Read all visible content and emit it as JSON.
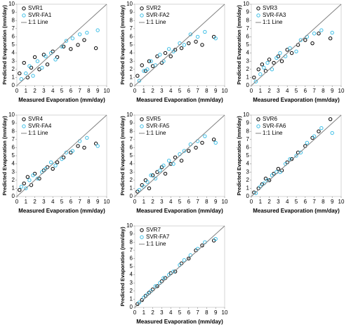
{
  "chart_data": [
    {
      "type": "scatter",
      "xlabel": "Measured Evaporation (mm/day)",
      "ylabel": "Predicted Evaporation (mm/day)",
      "xlim": [
        0,
        10
      ],
      "ylim": [
        0,
        10
      ],
      "xticks": [
        0,
        1,
        2,
        3,
        4,
        5,
        6,
        7,
        8,
        9,
        10
      ],
      "yticks": [
        0,
        1,
        2,
        3,
        4,
        5,
        6,
        7,
        8,
        9,
        10
      ],
      "series": [
        {
          "name": "SVR1",
          "color": "#000000",
          "x": [
            0.3,
            0.8,
            1.2,
            1.6,
            2.0,
            2.5,
            3.0,
            3.4,
            4.0,
            4.5,
            5.2,
            6.0,
            6.8,
            7.5,
            8.8
          ],
          "y": [
            1.5,
            2.8,
            1.0,
            2.2,
            3.5,
            2.0,
            3.8,
            2.6,
            4.2,
            3.5,
            4.8,
            4.5,
            5.0,
            5.6,
            4.6
          ]
        },
        {
          "name": "SVR-FA1",
          "color": "#3fbfe6",
          "x": [
            0.5,
            1.0,
            1.4,
            1.8,
            2.3,
            2.8,
            3.2,
            3.8,
            4.3,
            5.0,
            5.5,
            6.2,
            7.0,
            7.8,
            9.0
          ],
          "y": [
            0.8,
            1.5,
            2.4,
            1.2,
            3.0,
            2.2,
            3.6,
            4.0,
            3.2,
            4.8,
            5.5,
            5.8,
            6.3,
            6.5,
            6.8
          ]
        }
      ],
      "reference_line": {
        "name": "1:1 Line",
        "color": "#808080",
        "x": [
          0,
          10
        ],
        "y": [
          0,
          10
        ]
      }
    },
    {
      "type": "scatter",
      "xlabel": "Measured Evaporation (mm/day)",
      "ylabel": "Predicted Evaporation (mm/day)",
      "xlim": [
        0,
        10
      ],
      "ylim": [
        0,
        10
      ],
      "xticks": [
        0,
        1,
        2,
        3,
        4,
        5,
        6,
        7,
        8,
        9,
        10
      ],
      "yticks": [
        0,
        1,
        2,
        3,
        4,
        5,
        6,
        7,
        8,
        9,
        10
      ],
      "series": [
        {
          "name": "SVR2",
          "color": "#000000",
          "x": [
            0.3,
            0.8,
            1.2,
            1.6,
            2.0,
            2.5,
            3.0,
            3.4,
            4.0,
            4.5,
            5.2,
            6.0,
            6.8,
            7.5,
            8.8
          ],
          "y": [
            1.2,
            2.5,
            1.8,
            3.0,
            2.4,
            3.6,
            2.8,
            4.0,
            3.6,
            4.4,
            4.6,
            5.2,
            5.4,
            5.0,
            6.0
          ]
        },
        {
          "name": "SVR-FA2",
          "color": "#3fbfe6",
          "x": [
            0.5,
            1.0,
            1.4,
            1.8,
            2.3,
            2.8,
            3.2,
            3.8,
            4.3,
            5.0,
            5.5,
            6.2,
            7.0,
            7.8,
            9.0
          ],
          "y": [
            0.6,
            1.8,
            2.0,
            3.0,
            2.5,
            3.8,
            3.0,
            4.5,
            4.2,
            5.2,
            5.0,
            6.3,
            6.0,
            6.6,
            5.8
          ]
        }
      ],
      "reference_line": {
        "name": "1:1 Line",
        "color": "#808080",
        "x": [
          0,
          10
        ],
        "y": [
          0,
          10
        ]
      }
    },
    {
      "type": "scatter",
      "xlabel": "Measured Evaporation (mm/day)",
      "ylabel": "Predicted Evaporation (mm/day)",
      "xlim": [
        0,
        10
      ],
      "ylim": [
        0,
        10
      ],
      "xticks": [
        0,
        1,
        2,
        3,
        4,
        5,
        6,
        7,
        8,
        9,
        10
      ],
      "yticks": [
        0,
        1,
        2,
        3,
        4,
        5,
        6,
        7,
        8,
        9,
        10
      ],
      "series": [
        {
          "name": "SVR3",
          "color": "#000000",
          "x": [
            0.3,
            0.8,
            1.2,
            1.6,
            2.0,
            2.5,
            3.0,
            3.4,
            4.0,
            4.5,
            5.2,
            6.0,
            6.8,
            7.5,
            8.8
          ],
          "y": [
            1.0,
            2.0,
            2.6,
            1.8,
            3.2,
            2.8,
            3.6,
            3.0,
            4.4,
            4.0,
            5.0,
            5.6,
            5.2,
            6.4,
            5.8
          ]
        },
        {
          "name": "SVR-FA3",
          "color": "#3fbfe6",
          "x": [
            0.5,
            1.0,
            1.4,
            1.8,
            2.3,
            2.8,
            3.2,
            3.8,
            4.3,
            5.0,
            5.5,
            6.2,
            7.0,
            7.8,
            9.0
          ],
          "y": [
            0.5,
            1.4,
            2.2,
            2.8,
            2.0,
            3.4,
            4.0,
            3.6,
            4.6,
            4.2,
            5.6,
            6.0,
            6.4,
            6.8,
            6.5
          ]
        }
      ],
      "reference_line": {
        "name": "1:1 Line",
        "color": "#808080",
        "x": [
          0,
          10
        ],
        "y": [
          0,
          10
        ]
      }
    },
    {
      "type": "scatter",
      "xlabel": "Measured Evaporation (mm/day)",
      "ylabel": "Predicted Evaporation (mm/day)",
      "xlim": [
        0,
        10
      ],
      "ylim": [
        0,
        10
      ],
      "xticks": [
        0,
        1,
        2,
        3,
        4,
        5,
        6,
        7,
        8,
        9,
        10
      ],
      "yticks": [
        0,
        1,
        2,
        3,
        4,
        5,
        6,
        7,
        8,
        9,
        10
      ],
      "series": [
        {
          "name": "SVR4",
          "color": "#000000",
          "x": [
            0.3,
            0.8,
            1.2,
            1.6,
            2.0,
            2.5,
            3.0,
            3.4,
            4.0,
            4.5,
            5.2,
            6.0,
            6.8,
            7.5,
            8.8
          ],
          "y": [
            0.8,
            1.6,
            2.4,
            1.4,
            2.8,
            2.2,
            3.2,
            3.6,
            3.4,
            4.2,
            4.8,
            5.4,
            6.2,
            6.0,
            6.5
          ]
        },
        {
          "name": "SVR-FA4",
          "color": "#3fbfe6",
          "x": [
            0.5,
            1.0,
            1.4,
            1.8,
            2.3,
            2.8,
            3.2,
            3.8,
            4.3,
            5.0,
            5.5,
            6.2,
            7.0,
            7.8,
            9.0
          ],
          "y": [
            1.2,
            1.0,
            2.0,
            2.6,
            2.2,
            3.0,
            3.4,
            4.2,
            3.8,
            4.6,
            5.4,
            5.6,
            6.8,
            7.2,
            6.2
          ]
        }
      ],
      "reference_line": {
        "name": "1:1 Line",
        "color": "#808080",
        "x": [
          0,
          10
        ],
        "y": [
          0,
          10
        ]
      }
    },
    {
      "type": "scatter",
      "xlabel": "Measured Evaporation (mm/day)",
      "ylabel": "Predicted Evaporation (mm/day)",
      "xlim": [
        0,
        10
      ],
      "ylim": [
        0,
        10
      ],
      "xticks": [
        0,
        1,
        2,
        3,
        4,
        5,
        6,
        7,
        8,
        9,
        10
      ],
      "yticks": [
        0,
        1,
        2,
        3,
        4,
        5,
        6,
        7,
        8,
        9,
        10
      ],
      "series": [
        {
          "name": "SVR5",
          "color": "#000000",
          "x": [
            0.3,
            0.8,
            1.2,
            1.6,
            2.0,
            2.5,
            3.0,
            3.4,
            4.0,
            4.5,
            5.2,
            6.0,
            6.8,
            7.5,
            8.8
          ],
          "y": [
            0.6,
            1.4,
            2.0,
            1.0,
            2.6,
            3.0,
            3.6,
            2.8,
            4.0,
            4.8,
            4.4,
            5.6,
            6.0,
            6.6,
            7.0
          ]
        },
        {
          "name": "SVR-FA5",
          "color": "#3fbfe6",
          "x": [
            0.5,
            1.0,
            1.4,
            1.8,
            2.3,
            2.8,
            3.2,
            3.8,
            4.3,
            5.0,
            5.5,
            6.2,
            7.0,
            7.8,
            9.0
          ],
          "y": [
            0.8,
            1.2,
            1.8,
            2.6,
            2.2,
            3.2,
            3.8,
            4.4,
            4.0,
            5.2,
            5.6,
            6.4,
            6.8,
            7.4,
            6.6
          ]
        }
      ],
      "reference_line": {
        "name": "1:1 Line",
        "color": "#808080",
        "x": [
          0,
          10
        ],
        "y": [
          0,
          10
        ]
      }
    },
    {
      "type": "scatter",
      "xlabel": "Measured Evaporation (mm/day)",
      "ylabel": "Predicted Evaporation (mm/day)",
      "xlim": [
        0,
        10
      ],
      "ylim": [
        0,
        10
      ],
      "xticks": [
        0,
        1,
        2,
        3,
        4,
        5,
        6,
        7,
        8,
        9,
        10
      ],
      "yticks": [
        0,
        1,
        2,
        3,
        4,
        5,
        6,
        7,
        8,
        9,
        10
      ],
      "series": [
        {
          "name": "SVR6",
          "color": "#000000",
          "x": [
            0.3,
            0.8,
            1.2,
            1.6,
            2.0,
            2.5,
            3.0,
            3.4,
            4.0,
            4.5,
            5.2,
            6.0,
            6.8,
            7.5,
            8.8
          ],
          "y": [
            0.5,
            1.0,
            1.5,
            2.2,
            2.0,
            2.8,
            3.4,
            3.2,
            4.2,
            4.6,
            5.4,
            6.2,
            7.2,
            8.0,
            9.5
          ]
        },
        {
          "name": "SVR-FA6",
          "color": "#3fbfe6",
          "x": [
            0.5,
            1.0,
            1.4,
            1.8,
            2.3,
            2.8,
            3.2,
            3.8,
            4.3,
            5.0,
            5.5,
            6.2,
            7.0,
            7.8,
            9.0
          ],
          "y": [
            0.4,
            1.2,
            1.6,
            2.0,
            2.6,
            3.0,
            3.0,
            4.0,
            4.6,
            5.0,
            5.4,
            6.6,
            7.4,
            8.4,
            7.8
          ]
        }
      ],
      "reference_line": {
        "name": "1:1 Line",
        "color": "#808080",
        "x": [
          0,
          10
        ],
        "y": [
          0,
          10
        ]
      }
    },
    {
      "type": "scatter",
      "xlabel": "Measured Evaporation (mm/day)",
      "ylabel": "Predicted Evaporation (mm/day)",
      "xlim": [
        0,
        10
      ],
      "ylim": [
        0,
        10
      ],
      "xticks": [
        0,
        1,
        2,
        3,
        4,
        5,
        6,
        7,
        8,
        9,
        10
      ],
      "yticks": [
        0,
        1,
        2,
        3,
        4,
        5,
        6,
        7,
        8,
        9,
        10
      ],
      "series": [
        {
          "name": "SVR7",
          "color": "#000000",
          "x": [
            0.3,
            0.8,
            1.2,
            1.6,
            2.0,
            2.5,
            3.0,
            3.4,
            4.0,
            4.5,
            5.2,
            6.0,
            6.8,
            7.5,
            8.8
          ],
          "y": [
            0.4,
            0.9,
            1.4,
            1.8,
            2.2,
            2.6,
            3.2,
            3.6,
            4.2,
            4.4,
            5.4,
            6.0,
            7.0,
            7.6,
            8.2
          ]
        },
        {
          "name": "SVR-FA7",
          "color": "#3fbfe6",
          "x": [
            0.5,
            1.0,
            1.4,
            1.8,
            2.3,
            2.8,
            3.2,
            3.8,
            4.3,
            5.0,
            5.5,
            6.2,
            7.0,
            7.8,
            9.0
          ],
          "y": [
            0.6,
            1.2,
            1.6,
            2.0,
            2.6,
            3.0,
            3.6,
            4.0,
            4.4,
            5.2,
            5.8,
            6.4,
            7.2,
            8.0,
            8.4
          ]
        }
      ],
      "reference_line": {
        "name": "1:1 Line",
        "color": "#808080",
        "x": [
          0,
          10
        ],
        "y": [
          0,
          10
        ]
      }
    }
  ]
}
